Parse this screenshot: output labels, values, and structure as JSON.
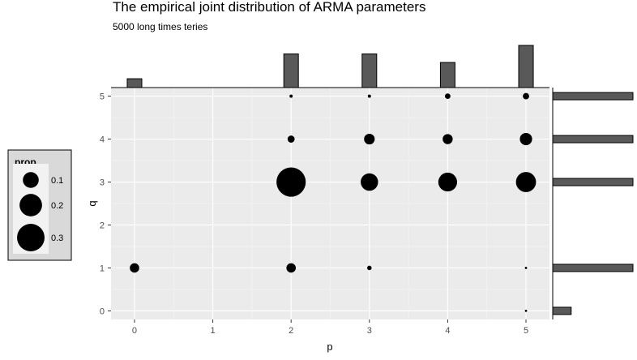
{
  "chart_data": {
    "type": "scatter",
    "title": "The empirical joint distribution of ARMA parameters",
    "subtitle": "5000  long times teries",
    "xlabel": "p",
    "ylabel": "q",
    "xlim": [
      -0.3,
      5.3
    ],
    "ylim": [
      -0.2,
      5.2
    ],
    "x_ticks": [
      "0",
      "1",
      "2",
      "3",
      "4",
      "5"
    ],
    "y_ticks": [
      "0",
      "1",
      "2",
      "3",
      "4",
      "5"
    ],
    "grid": true,
    "points": [
      {
        "p": 0,
        "q": 1,
        "prop": 0.035
      },
      {
        "p": 2,
        "q": 1,
        "prop": 0.035
      },
      {
        "p": 3,
        "q": 1,
        "prop": 0.008
      },
      {
        "p": 5,
        "q": 1,
        "prop": 0.002
      },
      {
        "p": 5,
        "q": 0,
        "prop": 0.002
      },
      {
        "p": 2,
        "q": 3,
        "prop": 0.34
      },
      {
        "p": 3,
        "q": 3,
        "prop": 0.12
      },
      {
        "p": 4,
        "q": 3,
        "prop": 0.14
      },
      {
        "p": 5,
        "q": 3,
        "prop": 0.16
      },
      {
        "p": 2,
        "q": 4,
        "prop": 0.02
      },
      {
        "p": 3,
        "q": 4,
        "prop": 0.045
      },
      {
        "p": 4,
        "q": 4,
        "prop": 0.04
      },
      {
        "p": 5,
        "q": 4,
        "prop": 0.06
      },
      {
        "p": 2,
        "q": 5,
        "prop": 0.004
      },
      {
        "p": 3,
        "q": 5,
        "prop": 0.004
      },
      {
        "p": 4,
        "q": 5,
        "prop": 0.012
      },
      {
        "p": 5,
        "q": 5,
        "prop": 0.016
      }
    ],
    "marginal_p": [
      {
        "p": 0,
        "count": 570
      },
      {
        "p": 2,
        "count": 2170
      },
      {
        "p": 3,
        "count": 2170
      },
      {
        "p": 4,
        "count": 1620
      },
      {
        "p": 5,
        "count": 2720
      }
    ],
    "marginal_q": [
      {
        "q": 0,
        "count": 430
      },
      {
        "q": 1,
        "count": 1870
      },
      {
        "q": 3,
        "count": 1870
      },
      {
        "q": 4,
        "count": 1870
      },
      {
        "q": 5,
        "count": 1870
      }
    ],
    "legend": {
      "title": "prop",
      "placement": "left",
      "labels": [
        "0.1",
        "0.2",
        "0.3"
      ],
      "values": [
        0.1,
        0.2,
        0.3
      ]
    },
    "colors": {
      "panel": "#ebebeb",
      "grid_major": "#ffffff",
      "grid_minor": "#f5f5f5",
      "point": "#000000",
      "bar_fill": "#595959",
      "bar_stroke": "#000000",
      "tick_text": "#4d4d4d",
      "legend_bg": "#d9d9d9"
    }
  }
}
